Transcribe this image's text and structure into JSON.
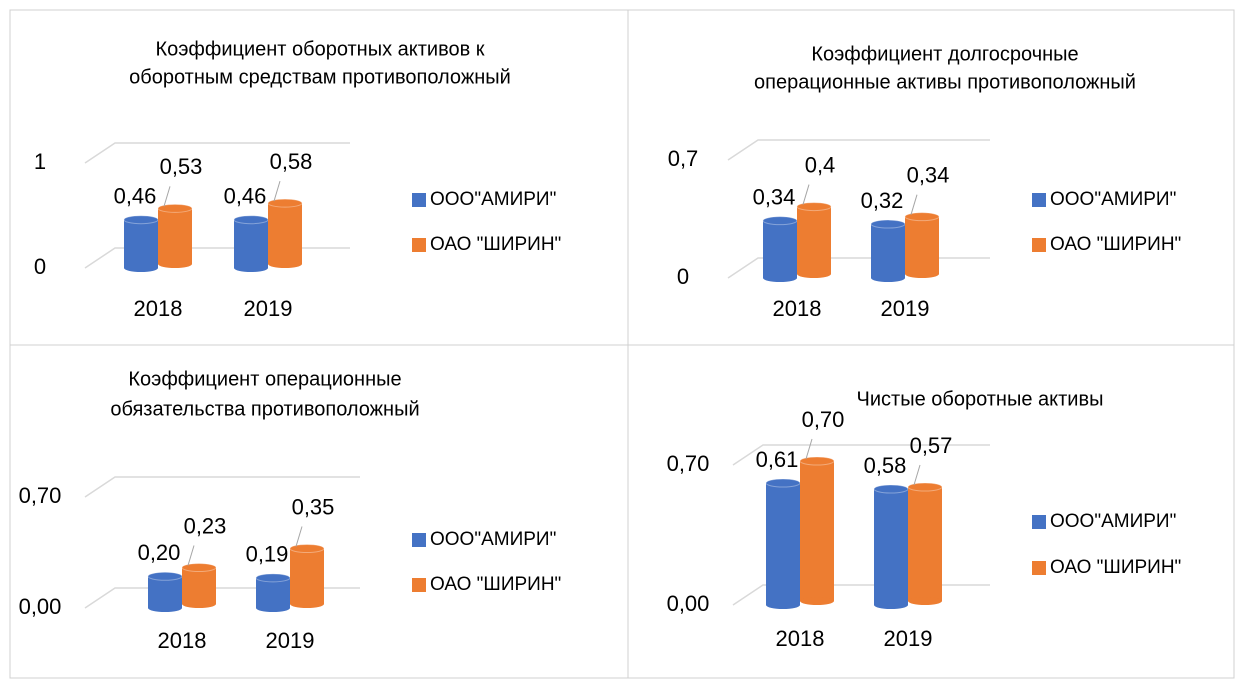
{
  "chart_data": [
    {
      "type": "bar",
      "title": [
        "Коэффициент оборотных активов к",
        "оборотным средствам противоположный"
      ],
      "categories": [
        "2018",
        "2019"
      ],
      "series": [
        {
          "name": "ООО\"АМИРИ\"",
          "color": "#4472c4",
          "values": [
            0.46,
            0.46
          ],
          "value_labels": [
            "0,46",
            "0,46"
          ]
        },
        {
          "name": "ОАО \"ШИРИН\"",
          "color": "#ed7d31",
          "values": [
            0.53,
            0.58
          ],
          "value_labels": [
            "0,53",
            "0,58"
          ]
        }
      ],
      "ylim": [
        0,
        1
      ],
      "yticks": [
        0,
        1
      ],
      "grid": true,
      "legend": "right"
    },
    {
      "type": "bar",
      "title": [
        "Коэффициент долгосрочные",
        "операционные активы противоположный"
      ],
      "categories": [
        "2018",
        "2019"
      ],
      "series": [
        {
          "name": "ООО\"АМИРИ\"",
          "color": "#4472c4",
          "values": [
            0.34,
            0.32
          ],
          "value_labels": [
            "0,34",
            "0,32"
          ]
        },
        {
          "name": "ОАО \"ШИРИН\"",
          "color": "#ed7d31",
          "values": [
            0.4,
            0.34
          ],
          "value_labels": [
            "0,4",
            "0,34"
          ]
        }
      ],
      "ylim": [
        0,
        0.7
      ],
      "yticks": [
        0,
        {
          "value": 0.7,
          "label": "0,7"
        }
      ],
      "grid": true,
      "legend": "right"
    },
    {
      "type": "bar",
      "title": [
        "Коэффициент операционные",
        "обязательства противоположный"
      ],
      "categories": [
        "2018",
        "2019"
      ],
      "series": [
        {
          "name": "ООО\"АМИРИ\"",
          "color": "#4472c4",
          "values": [
            0.2,
            0.19
          ],
          "value_labels": [
            "0,20",
            "0,19"
          ]
        },
        {
          "name": "ОАО \"ШИРИН\"",
          "color": "#ed7d31",
          "values": [
            0.23,
            0.35
          ],
          "value_labels": [
            "0,23",
            "0,35"
          ]
        }
      ],
      "ylim": [
        0,
        0.7
      ],
      "yticks": [
        {
          "value": 0,
          "label": "0,00"
        },
        {
          "value": 0.7,
          "label": "0,70"
        }
      ],
      "grid": true,
      "legend": "right"
    },
    {
      "type": "bar",
      "title": [
        "Чистые оборотные активы"
      ],
      "categories": [
        "2018",
        "2019"
      ],
      "series": [
        {
          "name": "ООО\"АМИРИ\"",
          "color": "#4472c4",
          "values": [
            0.61,
            0.58
          ],
          "value_labels": [
            "0,61",
            "0,58"
          ]
        },
        {
          "name": "ОАО \"ШИРИН\"",
          "color": "#ed7d31",
          "values": [
            0.7,
            0.57
          ],
          "value_labels": [
            "0,70",
            "0,57"
          ]
        }
      ],
      "ylim": [
        0,
        0.7
      ],
      "yticks": [
        {
          "value": 0,
          "label": "0,00"
        },
        {
          "value": 0.7,
          "label": "0,70"
        }
      ],
      "grid": true,
      "legend": "right"
    }
  ]
}
